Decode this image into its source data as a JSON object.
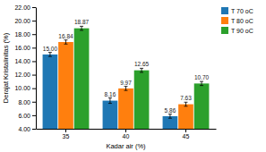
{
  "chart_data": {
    "type": "bar",
    "categories": [
      "35",
      "40",
      "45"
    ],
    "series": [
      {
        "name": "T 70 oC",
        "values": [
          15.0,
          8.16,
          5.86
        ],
        "errors": [
          0.3,
          0.4,
          0.3
        ],
        "value_labels": [
          "15.00",
          "8.16",
          "5.86"
        ]
      },
      {
        "name": "T 80 oC",
        "values": [
          16.84,
          9.97,
          7.63
        ],
        "errors": [
          0.3,
          0.3,
          0.3
        ],
        "value_labels": [
          "16.84",
          "9.97",
          "7.63"
        ]
      },
      {
        "name": "T 90 oC",
        "values": [
          18.87,
          12.65,
          10.7
        ],
        "errors": [
          0.3,
          0.3,
          0.3
        ],
        "value_labels": [
          "18.87",
          "12.65",
          "10.70"
        ]
      }
    ],
    "xlabel": "Kadar air (%)",
    "ylabel": "Derajat Kristalinitas (%)",
    "ylim": [
      4.0,
      22.0
    ],
    "yticks": [
      {
        "value": 4,
        "label": "4.00"
      },
      {
        "value": 6,
        "label": "6.00"
      },
      {
        "value": 8,
        "label": "8.00"
      },
      {
        "value": 10,
        "label": "10.00"
      },
      {
        "value": 12,
        "label": "12.00"
      },
      {
        "value": 14,
        "label": "14.00"
      },
      {
        "value": 16,
        "label": "16.00"
      },
      {
        "value": 18,
        "label": "18.00"
      },
      {
        "value": 20,
        "label": "20.00"
      },
      {
        "value": 22,
        "label": "22.00"
      }
    ],
    "data_labels": true,
    "grid": false,
    "legend": "right"
  }
}
